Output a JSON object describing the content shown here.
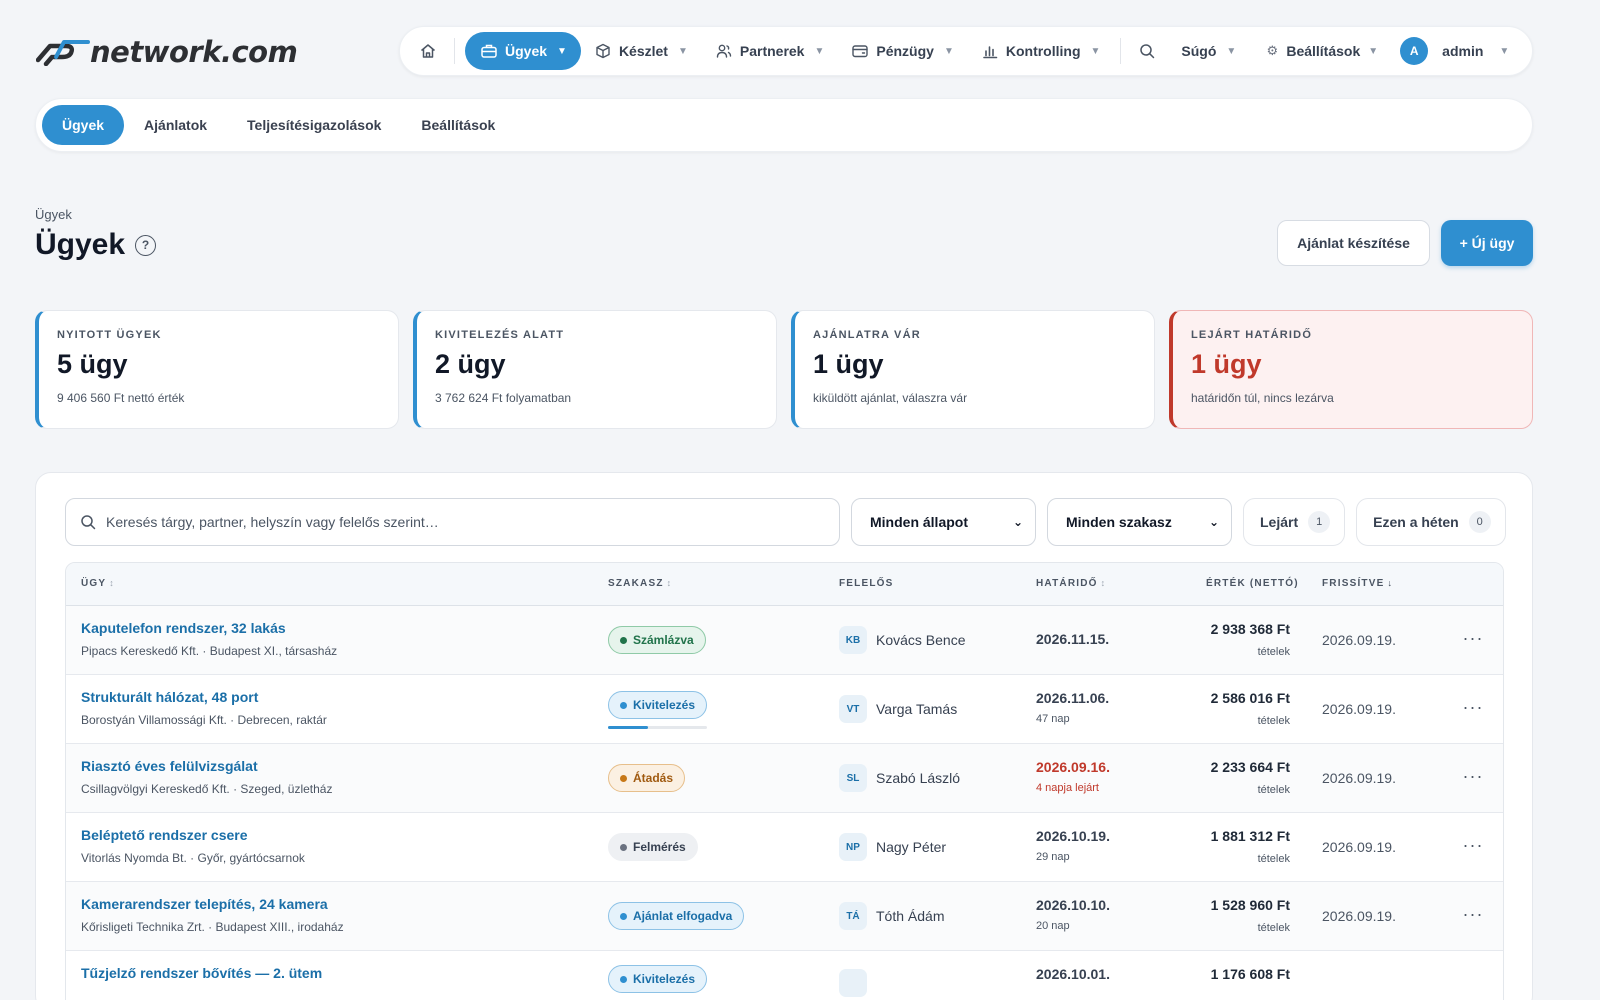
{
  "brand": {
    "name": "network.com"
  },
  "topnav": {
    "items": [
      {
        "label": "Ügyek",
        "icon": "briefcase-icon"
      },
      {
        "label": "Készlet",
        "icon": "box-icon"
      },
      {
        "label": "Partnerek",
        "icon": "users-icon"
      },
      {
        "label": "Pénzügy",
        "icon": "wallet-icon"
      },
      {
        "label": "Kontrolling",
        "icon": "bar-chart-icon"
      },
      {
        "label": "Súgó"
      },
      {
        "label": "Beállítások",
        "icon": "gear-icon"
      }
    ],
    "user": {
      "initial": "A",
      "name": "admin"
    }
  },
  "subnav": {
    "items": [
      "Ügyek",
      "Ajánlatok",
      "Teljesítésigazolások",
      "Beállítások"
    ]
  },
  "header": {
    "breadcrumb": "Ügyek",
    "title": "Ügyek",
    "help": "?",
    "btn_offer": "Ajánlat készítése",
    "btn_new": "+ Új ügy"
  },
  "stats": [
    {
      "label": "NYITOTT ÜGYEK",
      "value": "5 ügy",
      "note": "9 406 560 Ft nettó érték"
    },
    {
      "label": "KIVITELEZÉS ALATT",
      "value": "2 ügy",
      "note": "3 762 624 Ft folyamatban"
    },
    {
      "label": "AJÁNLATRA VÁR",
      "value": "1 ügy",
      "note": "kiküldött ajánlat, válaszra vár"
    },
    {
      "label": "LEJÁRT HATÁRIDŐ",
      "value": "1 ügy",
      "note": "határidőn túl, nincs lezárva"
    }
  ],
  "filters": {
    "search_placeholder": "Keresés tárgy, partner, helyszín vagy felelős szerint…",
    "status_select": "Minden állapot",
    "stage_select": "Minden szakasz",
    "chip_overdue": {
      "label": "Lejárt",
      "count": "1"
    },
    "chip_week": {
      "label": "Ezen a héten",
      "count": "0"
    }
  },
  "table": {
    "headers": {
      "case": "ÜGY",
      "stage": "SZAKASZ",
      "owner": "FELELŐS",
      "due": "HATÁRIDŐ",
      "value": "ÉRTÉK (NETTÓ)",
      "updated": "FRISSÍTVE"
    },
    "rows": [
      {
        "title": "Kaputelefon rendszer, 32 lakás",
        "sub": "Pipacs Kereskedő Kft. · Budapest XI., társasház",
        "stage": "Számlázva",
        "initials": "KB",
        "owner": "Kovács Bence",
        "due": "2026.11.15.",
        "due_sub": "",
        "value": "2 938 368 Ft",
        "value_sub": "tételek",
        "updated": "2026.09.19."
      },
      {
        "title": "Strukturált hálózat, 48 port",
        "sub": "Borostyán Villamossági Kft. · Debrecen, raktár",
        "stage": "Kivitelezés",
        "progress": 0.4,
        "initials": "VT",
        "owner": "Varga Tamás",
        "due": "2026.11.06.",
        "due_sub": "47 nap",
        "value": "2 586 016 Ft",
        "value_sub": "tételek",
        "updated": "2026.09.19."
      },
      {
        "title": "Riasztó éves felülvizsgálat",
        "sub": "Csillagvölgyi Kereskedő Kft. · Szeged, üzletház",
        "stage": "Átadás",
        "initials": "SL",
        "owner": "Szabó László",
        "due": "2026.09.16.",
        "due_sub": "4 napja lejárt",
        "value": "2 233 664 Ft",
        "value_sub": "tételek",
        "updated": "2026.09.19."
      },
      {
        "title": "Beléptető rendszer csere",
        "sub": "Vitorlás Nyomda Bt. · Győr, gyártócsarnok",
        "stage": "Felmérés",
        "initials": "NP",
        "owner": "Nagy Péter",
        "due": "2026.10.19.",
        "due_sub": "29 nap",
        "value": "1 881 312 Ft",
        "value_sub": "tételek",
        "updated": "2026.09.19."
      },
      {
        "title": "Kamerarendszer telepítés, 24 kamera",
        "sub": "Kőrisligeti Technika Zrt. · Budapest XIII., irodaház",
        "stage": "Ajánlat elfogadva",
        "initials": "TÁ",
        "owner": "Tóth Ádám",
        "due": "2026.10.10.",
        "due_sub": "20 nap",
        "value": "1 528 960 Ft",
        "value_sub": "tételek",
        "updated": "2026.09.19."
      },
      {
        "title": "Tűzjelző rendszer bővítés — 2. ütem",
        "sub": "",
        "stage": "Kivitelezés",
        "initials": "",
        "owner": "",
        "due": "2026.10.01.",
        "due_sub": "",
        "value": "1 176 608 Ft",
        "value_sub": "",
        "updated": ""
      }
    ]
  }
}
